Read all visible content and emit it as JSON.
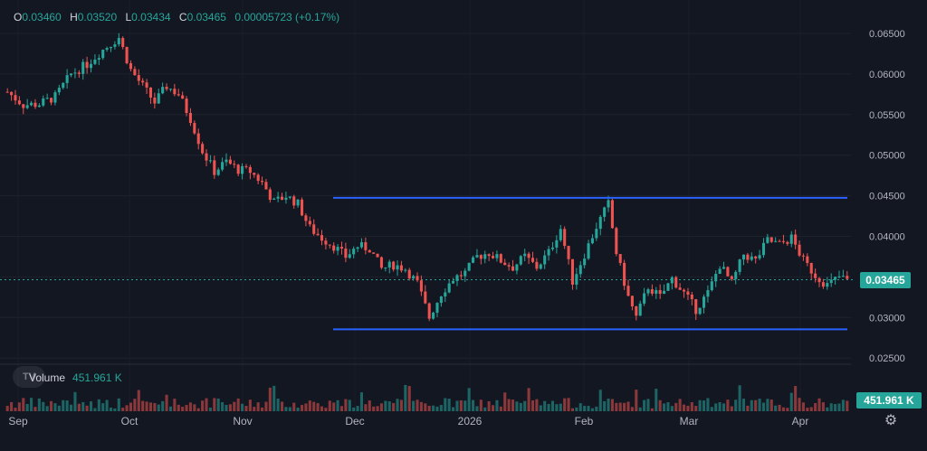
{
  "header": {
    "o_key": "O",
    "o_val": "0.03460",
    "h_key": "H",
    "h_val": "0.03520",
    "l_key": "L",
    "l_val": "0.03434",
    "c_key": "C",
    "c_val": "0.03465",
    "change": "0.00005723 (+0.17%)"
  },
  "volume": {
    "label": "Volume",
    "value": "451.961 K"
  },
  "badges": {
    "price": "0.03465",
    "volume": "451.961 K"
  },
  "logo_text": "TV",
  "colors": {
    "up": "#26a69a",
    "down": "#ef5350",
    "channel": "#2962ff",
    "background": "#131722"
  },
  "icons": {
    "settings": "gear-icon",
    "logo": "tradingview-logo"
  },
  "chart_data": {
    "type": "candlestick",
    "y_ticks": [
      "0.06500",
      "0.06000",
      "0.05500",
      "0.05000",
      "0.04500",
      "0.04000",
      "0.03500",
      "0.03000",
      "0.02500"
    ],
    "ylim": [
      0.0245,
      0.0665
    ],
    "x_labels": [
      "Sep",
      "Oct",
      "Nov",
      "Dec",
      "2026",
      "Feb",
      "Mar",
      "Apr"
    ],
    "current_price": 0.03465,
    "channel": {
      "upper": 0.04475,
      "lower": 0.02855,
      "start": "Dec (late Nov)",
      "end": "Apr"
    },
    "close_path": [
      [
        0,
        0.0578
      ],
      [
        4,
        0.0562
      ],
      [
        8,
        0.0563
      ],
      [
        12,
        0.0572
      ],
      [
        16,
        0.06
      ],
      [
        20,
        0.0612
      ],
      [
        24,
        0.063
      ],
      [
        28,
        0.0645
      ],
      [
        31,
        0.0605
      ],
      [
        34,
        0.0585
      ],
      [
        37,
        0.0565
      ],
      [
        40,
        0.0585
      ],
      [
        43,
        0.0575
      ],
      [
        46,
        0.0545
      ],
      [
        49,
        0.0505
      ],
      [
        52,
        0.048
      ],
      [
        55,
        0.0492
      ],
      [
        58,
        0.0482
      ],
      [
        61,
        0.048
      ],
      [
        64,
        0.0466
      ],
      [
        67,
        0.0442
      ],
      [
        70,
        0.045
      ],
      [
        73,
        0.044
      ],
      [
        76,
        0.041
      ],
      [
        79,
        0.0398
      ],
      [
        82,
        0.0388
      ],
      [
        85,
        0.0375
      ],
      [
        88,
        0.0388
      ],
      [
        91,
        0.0385
      ],
      [
        94,
        0.036
      ],
      [
        97,
        0.0365
      ],
      [
        100,
        0.036
      ],
      [
        103,
        0.0342
      ],
      [
        106,
        0.03
      ],
      [
        109,
        0.033
      ],
      [
        112,
        0.0348
      ],
      [
        115,
        0.0355
      ],
      [
        118,
        0.0375
      ],
      [
        121,
        0.038
      ],
      [
        124,
        0.037
      ],
      [
        127,
        0.0362
      ],
      [
        130,
        0.0375
      ],
      [
        133,
        0.0362
      ],
      [
        136,
        0.038
      ],
      [
        139,
        0.041
      ],
      [
        142,
        0.0345
      ],
      [
        145,
        0.0378
      ],
      [
        148,
        0.0412
      ],
      [
        151,
        0.044
      ],
      [
        153,
        0.038
      ],
      [
        156,
        0.0325
      ],
      [
        158,
        0.03
      ],
      [
        161,
        0.0338
      ],
      [
        164,
        0.0325
      ],
      [
        167,
        0.0348
      ],
      [
        170,
        0.033
      ],
      [
        173,
        0.031
      ],
      [
        176,
        0.033
      ],
      [
        179,
        0.0365
      ],
      [
        182,
        0.0342
      ],
      [
        185,
        0.0378
      ],
      [
        188,
        0.037
      ],
      [
        191,
        0.0395
      ],
      [
        194,
        0.039
      ],
      [
        197,
        0.0398
      ],
      [
        200,
        0.037
      ],
      [
        203,
        0.0352
      ],
      [
        206,
        0.034
      ],
      [
        209,
        0.035
      ],
      [
        211,
        0.0346
      ]
    ],
    "volume_last": "451.961 K"
  }
}
